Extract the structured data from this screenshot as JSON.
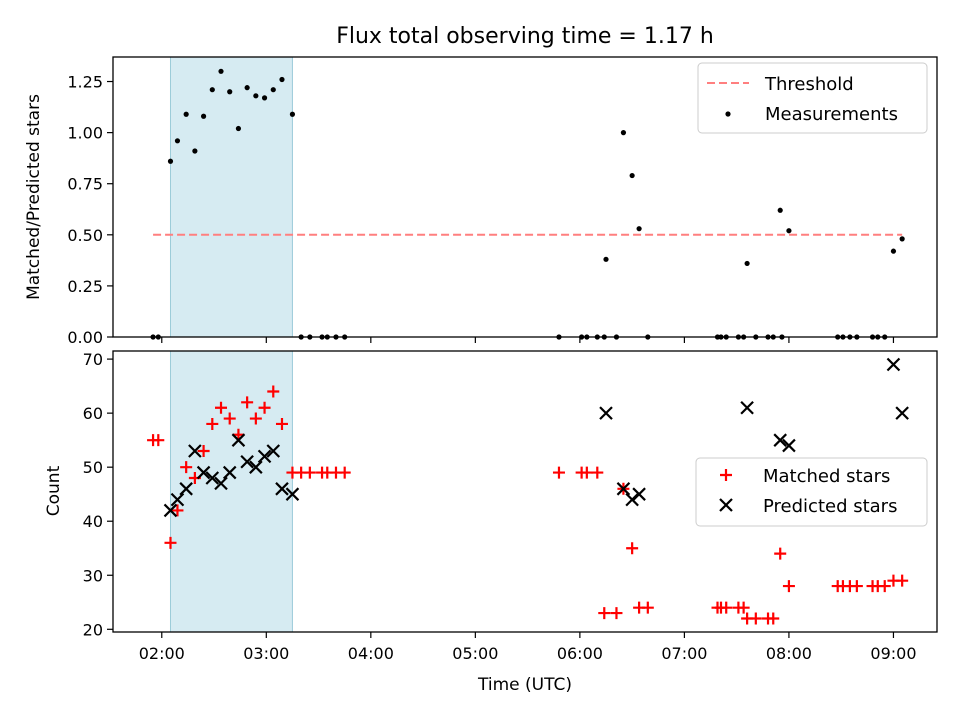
{
  "title": "Flux total observing time = 1.17 h",
  "chart_data": [
    {
      "type": "scatter",
      "panel": "top",
      "title": "Flux total observing time = 1.17 h",
      "xlabel": "",
      "ylabel": "Matched/Predicted stars",
      "xlim": [
        "01:32",
        "09:25"
      ],
      "ylim": [
        0,
        1.37
      ],
      "yticks": [
        "0.00",
        "0.25",
        "0.50",
        "0.75",
        "1.00",
        "1.25"
      ],
      "grid": false,
      "legend": "upper right",
      "shaded_span": {
        "start": "02:05",
        "end": "03:15",
        "color": "#add8e6"
      },
      "threshold": {
        "name": "Threshold",
        "value": 0.5,
        "x_start": "01:55",
        "x_end": "09:05",
        "color": "#ff7f7f",
        "style": "dashed"
      },
      "series": [
        {
          "name": "Measurements",
          "marker": "dot",
          "color": "#000000",
          "points": [
            [
              "01:55",
              0
            ],
            [
              "01:58",
              0
            ],
            [
              "02:05",
              0.86
            ],
            [
              "02:09",
              0.96
            ],
            [
              "02:14",
              1.09
            ],
            [
              "02:19",
              0.91
            ],
            [
              "02:24",
              1.08
            ],
            [
              "02:29",
              1.21
            ],
            [
              "02:34",
              1.3
            ],
            [
              "02:39",
              1.2
            ],
            [
              "02:44",
              1.02
            ],
            [
              "02:49",
              1.22
            ],
            [
              "02:54",
              1.18
            ],
            [
              "02:59",
              1.17
            ],
            [
              "03:04",
              1.21
            ],
            [
              "03:09",
              1.26
            ],
            [
              "03:15",
              1.09
            ],
            [
              "03:20",
              0
            ],
            [
              "03:25",
              0
            ],
            [
              "03:32",
              0
            ],
            [
              "03:35",
              0
            ],
            [
              "03:40",
              0
            ],
            [
              "03:45",
              0
            ],
            [
              "05:48",
              0
            ],
            [
              "06:01",
              0
            ],
            [
              "06:04",
              0
            ],
            [
              "06:10",
              0
            ],
            [
              "06:14",
              0
            ],
            [
              "06:21",
              0
            ],
            [
              "06:15",
              0.38
            ],
            [
              "06:25",
              1.0
            ],
            [
              "06:30",
              0.79
            ],
            [
              "06:34",
              0.53
            ],
            [
              "06:39",
              0
            ],
            [
              "07:19",
              0
            ],
            [
              "07:21",
              0
            ],
            [
              "07:24",
              0
            ],
            [
              "07:31",
              0
            ],
            [
              "07:34",
              0
            ],
            [
              "07:41",
              0
            ],
            [
              "07:36",
              0.36
            ],
            [
              "07:48",
              0
            ],
            [
              "07:51",
              0
            ],
            [
              "07:56",
              0
            ],
            [
              "07:55",
              0.62
            ],
            [
              "08:00",
              0.52
            ],
            [
              "08:28",
              0
            ],
            [
              "08:31",
              0
            ],
            [
              "08:35",
              0
            ],
            [
              "08:39",
              0
            ],
            [
              "08:48",
              0
            ],
            [
              "08:51",
              0
            ],
            [
              "08:55",
              0
            ],
            [
              "09:00",
              0.42
            ],
            [
              "09:05",
              0.48
            ]
          ]
        }
      ]
    },
    {
      "type": "scatter",
      "panel": "bottom",
      "title": "",
      "xlabel": "Time (UTC)",
      "ylabel": "Count",
      "xlim": [
        "01:32",
        "09:25"
      ],
      "ylim": [
        19.5,
        71.5
      ],
      "xticks": [
        "02:00",
        "03:00",
        "04:00",
        "05:00",
        "06:00",
        "07:00",
        "08:00",
        "09:00"
      ],
      "yticks": [
        "20",
        "30",
        "40",
        "50",
        "60",
        "70"
      ],
      "grid": false,
      "legend": "center right",
      "shaded_span": {
        "start": "02:05",
        "end": "03:15",
        "color": "#add8e6"
      },
      "series": [
        {
          "name": "Matched stars",
          "marker": "plus",
          "color": "#ff0000",
          "points": [
            [
              "01:55",
              55
            ],
            [
              "01:58",
              55
            ],
            [
              "02:05",
              36
            ],
            [
              "02:09",
              42
            ],
            [
              "02:14",
              50
            ],
            [
              "02:19",
              48
            ],
            [
              "02:24",
              53
            ],
            [
              "02:29",
              58
            ],
            [
              "02:34",
              61
            ],
            [
              "02:39",
              59
            ],
            [
              "02:44",
              56
            ],
            [
              "02:49",
              62
            ],
            [
              "02:54",
              59
            ],
            [
              "02:59",
              61
            ],
            [
              "03:04",
              64
            ],
            [
              "03:09",
              58
            ],
            [
              "03:15",
              49
            ],
            [
              "03:20",
              49
            ],
            [
              "03:25",
              49
            ],
            [
              "03:32",
              49
            ],
            [
              "03:35",
              49
            ],
            [
              "03:40",
              49
            ],
            [
              "03:45",
              49
            ],
            [
              "05:48",
              49
            ],
            [
              "06:01",
              49
            ],
            [
              "06:04",
              49
            ],
            [
              "06:10",
              49
            ],
            [
              "06:14",
              23
            ],
            [
              "06:21",
              23
            ],
            [
              "06:25",
              46
            ],
            [
              "06:30",
              35
            ],
            [
              "06:34",
              24
            ],
            [
              "06:39",
              24
            ],
            [
              "07:19",
              24
            ],
            [
              "07:21",
              24
            ],
            [
              "07:24",
              24
            ],
            [
              "07:31",
              24
            ],
            [
              "07:34",
              24
            ],
            [
              "07:36",
              22
            ],
            [
              "07:41",
              22
            ],
            [
              "07:48",
              22
            ],
            [
              "07:51",
              22
            ],
            [
              "07:55",
              34
            ],
            [
              "08:00",
              28
            ],
            [
              "08:28",
              28
            ],
            [
              "08:31",
              28
            ],
            [
              "08:35",
              28
            ],
            [
              "08:39",
              28
            ],
            [
              "08:48",
              28
            ],
            [
              "08:51",
              28
            ],
            [
              "08:55",
              28
            ],
            [
              "09:00",
              29
            ],
            [
              "09:05",
              29
            ]
          ]
        },
        {
          "name": "Predicted stars",
          "marker": "x",
          "color": "#000000",
          "points": [
            [
              "02:05",
              42
            ],
            [
              "02:09",
              44
            ],
            [
              "02:14",
              46
            ],
            [
              "02:19",
              53
            ],
            [
              "02:24",
              49
            ],
            [
              "02:29",
              48
            ],
            [
              "02:34",
              47
            ],
            [
              "02:39",
              49
            ],
            [
              "02:44",
              55
            ],
            [
              "02:49",
              51
            ],
            [
              "02:54",
              50
            ],
            [
              "02:59",
              52
            ],
            [
              "03:04",
              53
            ],
            [
              "03:09",
              46
            ],
            [
              "03:15",
              45
            ],
            [
              "06:15",
              60
            ],
            [
              "06:25",
              46
            ],
            [
              "06:30",
              44
            ],
            [
              "06:34",
              45
            ],
            [
              "07:36",
              61
            ],
            [
              "07:55",
              55
            ],
            [
              "08:00",
              54
            ],
            [
              "09:00",
              69
            ],
            [
              "09:05",
              60
            ]
          ]
        }
      ]
    }
  ]
}
